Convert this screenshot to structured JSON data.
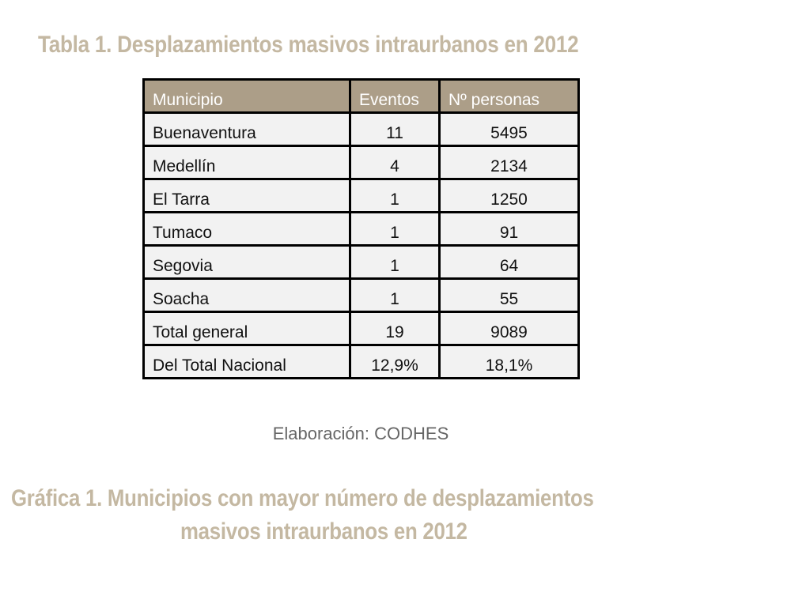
{
  "table_title": "Tabla 1. Desplazamientos masivos intraurbanos en 2012",
  "table": {
    "headers": [
      "Municipio",
      "Eventos",
      "Nº personas"
    ],
    "rows": [
      [
        "Buenaventura",
        "11",
        "5495"
      ],
      [
        "Medellín",
        "4",
        "2134"
      ],
      [
        "El Tarra",
        "1",
        "1250"
      ],
      [
        "Tumaco",
        "1",
        "91"
      ],
      [
        "Segovia",
        "1",
        "64"
      ],
      [
        "Soacha",
        "1",
        "55"
      ],
      [
        "Total general",
        "19",
        "9089"
      ],
      [
        "Del Total Nacional",
        "12,9%",
        "18,1%"
      ]
    ]
  },
  "source": "Elaboración: CODHES",
  "chart_title_line1": "Gráfica 1. Municipios con mayor número de desplazamientos",
  "chart_title_line2": "masivos intraurbanos en 2012",
  "colors": {
    "title": "#c4b8a2",
    "header_bg": "#ac9e88",
    "cell_bg": "#f2f2f2"
  }
}
